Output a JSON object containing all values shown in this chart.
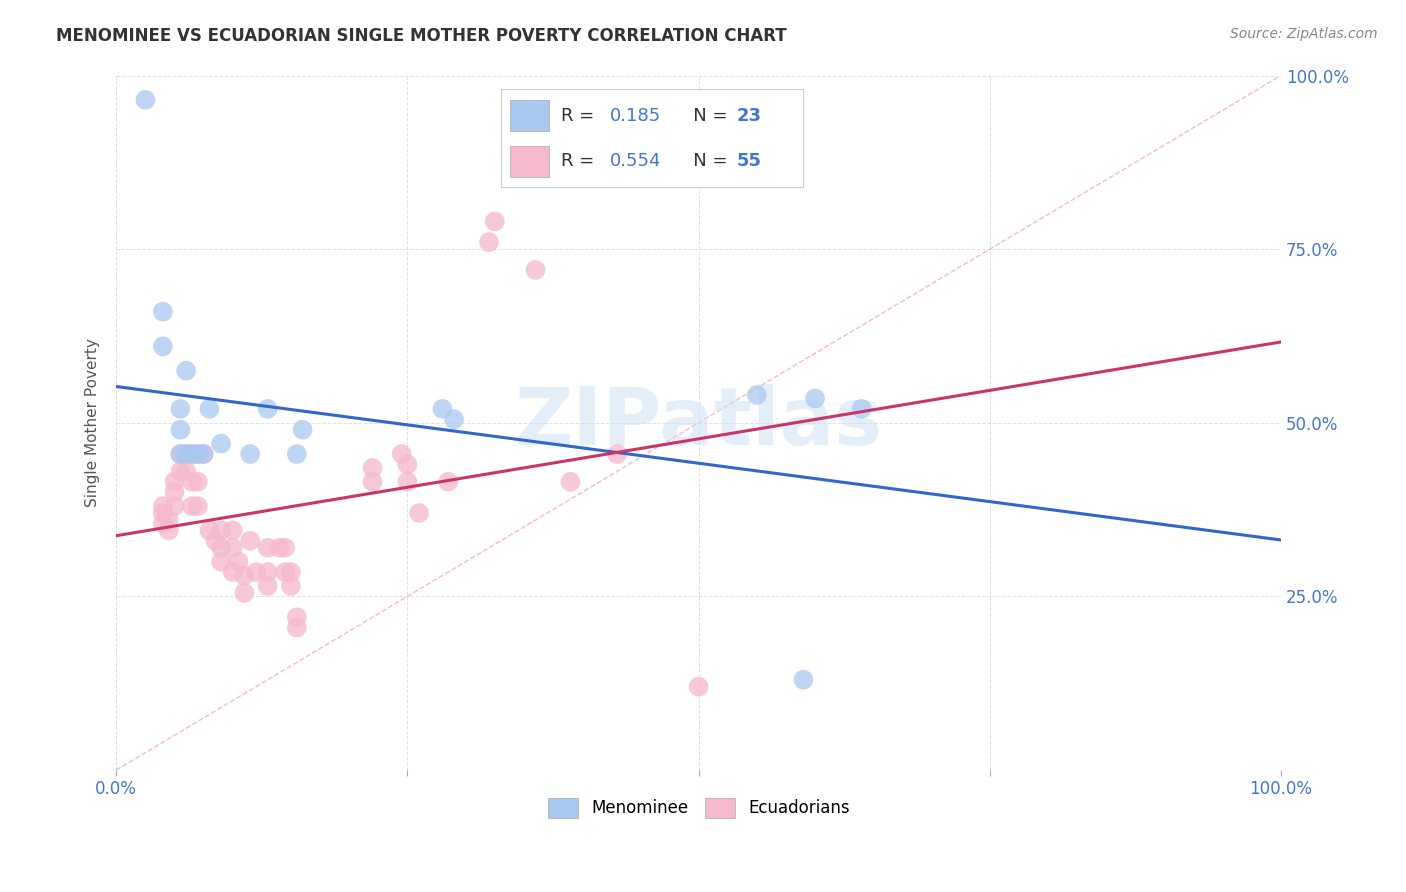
{
  "title": "MENOMINEE VS ECUADORIAN SINGLE MOTHER POVERTY CORRELATION CHART",
  "source": "Source: ZipAtlas.com",
  "ylabel": "Single Mother Poverty",
  "xlim": [
    0,
    1
  ],
  "ylim": [
    0,
    1
  ],
  "watermark": "ZIPatlas",
  "menominee_R": "0.185",
  "menominee_N": "23",
  "ecuadorian_R": "0.554",
  "ecuadorian_N": "55",
  "menominee_color": "#a8c8f0",
  "ecuadorian_color": "#f5b8cc",
  "trend_menominee_color": "#3366cc",
  "trend_ecuadorian_color": "#cc3366",
  "diagonal_color": "#f5b8cc",
  "grid_color": "#cccccc",
  "background_color": "#ffffff",
  "menominee_points": [
    [
      0.025,
      0.965
    ],
    [
      0.04,
      0.66
    ],
    [
      0.04,
      0.61
    ],
    [
      0.06,
      0.575
    ],
    [
      0.055,
      0.52
    ],
    [
      0.055,
      0.49
    ],
    [
      0.055,
      0.455
    ],
    [
      0.06,
      0.455
    ],
    [
      0.065,
      0.455
    ],
    [
      0.07,
      0.455
    ],
    [
      0.075,
      0.455
    ],
    [
      0.08,
      0.52
    ],
    [
      0.09,
      0.47
    ],
    [
      0.115,
      0.455
    ],
    [
      0.13,
      0.52
    ],
    [
      0.155,
      0.455
    ],
    [
      0.16,
      0.49
    ],
    [
      0.28,
      0.52
    ],
    [
      0.29,
      0.505
    ],
    [
      0.55,
      0.54
    ],
    [
      0.6,
      0.535
    ],
    [
      0.64,
      0.52
    ],
    [
      0.59,
      0.13
    ]
  ],
  "ecuadorian_points": [
    [
      0.04,
      0.38
    ],
    [
      0.04,
      0.355
    ],
    [
      0.04,
      0.37
    ],
    [
      0.045,
      0.36
    ],
    [
      0.045,
      0.345
    ],
    [
      0.05,
      0.415
    ],
    [
      0.05,
      0.4
    ],
    [
      0.05,
      0.38
    ],
    [
      0.055,
      0.455
    ],
    [
      0.055,
      0.43
    ],
    [
      0.06,
      0.455
    ],
    [
      0.06,
      0.43
    ],
    [
      0.065,
      0.455
    ],
    [
      0.065,
      0.415
    ],
    [
      0.065,
      0.38
    ],
    [
      0.07,
      0.455
    ],
    [
      0.07,
      0.415
    ],
    [
      0.07,
      0.38
    ],
    [
      0.075,
      0.455
    ],
    [
      0.08,
      0.345
    ],
    [
      0.085,
      0.33
    ],
    [
      0.09,
      0.345
    ],
    [
      0.09,
      0.32
    ],
    [
      0.09,
      0.3
    ],
    [
      0.1,
      0.345
    ],
    [
      0.1,
      0.32
    ],
    [
      0.1,
      0.285
    ],
    [
      0.105,
      0.3
    ],
    [
      0.11,
      0.28
    ],
    [
      0.11,
      0.255
    ],
    [
      0.115,
      0.33
    ],
    [
      0.12,
      0.285
    ],
    [
      0.13,
      0.32
    ],
    [
      0.13,
      0.285
    ],
    [
      0.13,
      0.265
    ],
    [
      0.14,
      0.32
    ],
    [
      0.145,
      0.32
    ],
    [
      0.145,
      0.285
    ],
    [
      0.15,
      0.285
    ],
    [
      0.15,
      0.265
    ],
    [
      0.155,
      0.22
    ],
    [
      0.155,
      0.205
    ],
    [
      0.22,
      0.435
    ],
    [
      0.22,
      0.415
    ],
    [
      0.245,
      0.455
    ],
    [
      0.25,
      0.44
    ],
    [
      0.25,
      0.415
    ],
    [
      0.26,
      0.37
    ],
    [
      0.285,
      0.415
    ],
    [
      0.32,
      0.76
    ],
    [
      0.325,
      0.79
    ],
    [
      0.36,
      0.72
    ],
    [
      0.39,
      0.415
    ],
    [
      0.43,
      0.455
    ],
    [
      0.5,
      0.12
    ]
  ]
}
